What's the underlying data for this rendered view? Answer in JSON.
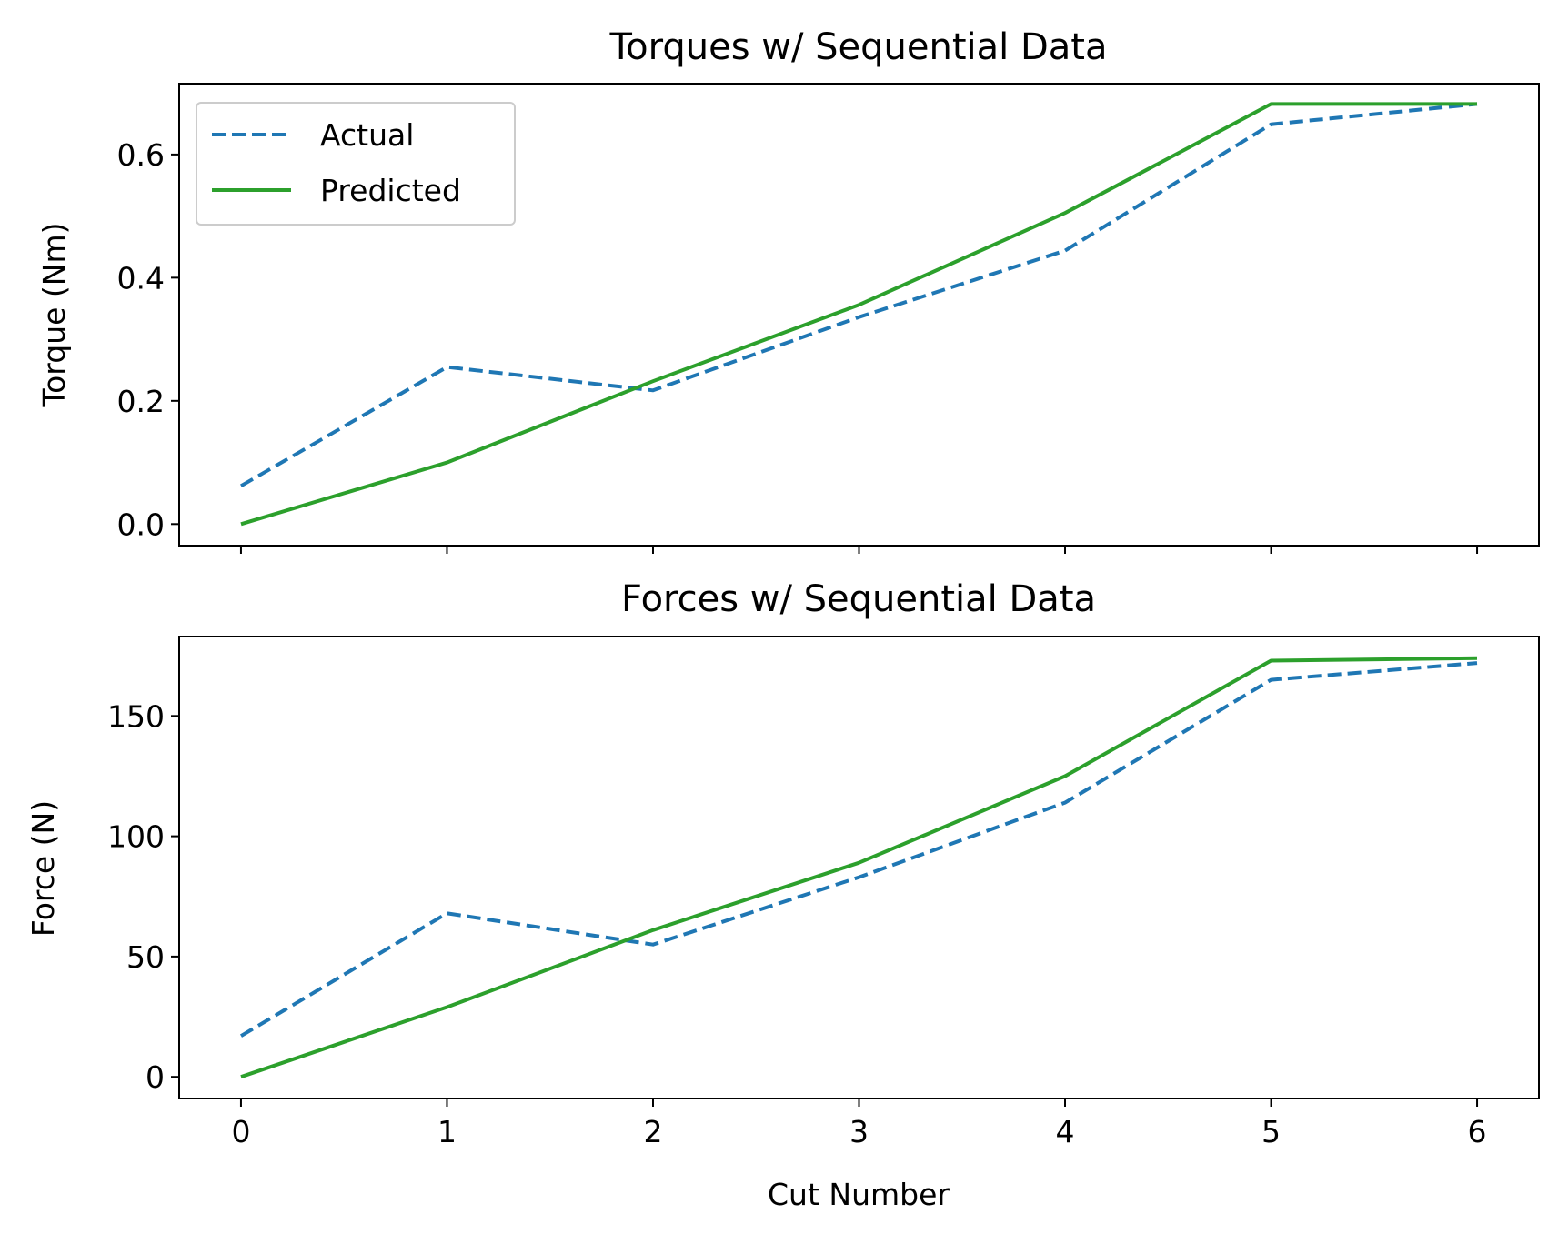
{
  "colors": {
    "actual": "#1f77b4",
    "predicted": "#2ca02c"
  },
  "chart_data": [
    {
      "type": "line",
      "title": "Torques w/ Sequential Data",
      "xlabel": "",
      "ylabel": "Torque (Nm)",
      "x": [
        0,
        1,
        2,
        3,
        4,
        5,
        6
      ],
      "xlim": [
        -0.3,
        6.3
      ],
      "ylim": [
        -0.035,
        0.715
      ],
      "yticks": [
        0.0,
        0.2,
        0.4,
        0.6
      ],
      "ytick_labels": [
        "0.0",
        "0.2",
        "0.4",
        "0.6"
      ],
      "xtick_labels_visible": false,
      "legend": {
        "location": "upper-left",
        "entries": [
          "Actual",
          "Predicted"
        ]
      },
      "series": [
        {
          "name": "Actual",
          "style": "dashed",
          "values": [
            0.062,
            0.255,
            0.217,
            0.336,
            0.444,
            0.649,
            0.682
          ]
        },
        {
          "name": "Predicted",
          "style": "solid",
          "values": [
            0.0,
            0.1,
            0.232,
            0.356,
            0.505,
            0.682,
            0.682
          ]
        }
      ]
    },
    {
      "type": "line",
      "title": "Forces w/ Sequential Data",
      "xlabel": "Cut Number",
      "ylabel": "Force (N)",
      "x": [
        0,
        1,
        2,
        3,
        4,
        5,
        6
      ],
      "xlim": [
        -0.3,
        6.3
      ],
      "ylim": [
        -9,
        183
      ],
      "yticks": [
        0,
        50,
        100,
        150
      ],
      "ytick_labels": [
        "0",
        "50",
        "100",
        "150"
      ],
      "xtick_labels": [
        "0",
        "1",
        "2",
        "3",
        "4",
        "5",
        "6"
      ],
      "series": [
        {
          "name": "Actual",
          "style": "dashed",
          "values": [
            17,
            68,
            55,
            83,
            114,
            165,
            172
          ]
        },
        {
          "name": "Predicted",
          "style": "solid",
          "values": [
            0,
            29,
            61,
            89,
            125,
            173,
            174
          ]
        }
      ]
    }
  ]
}
